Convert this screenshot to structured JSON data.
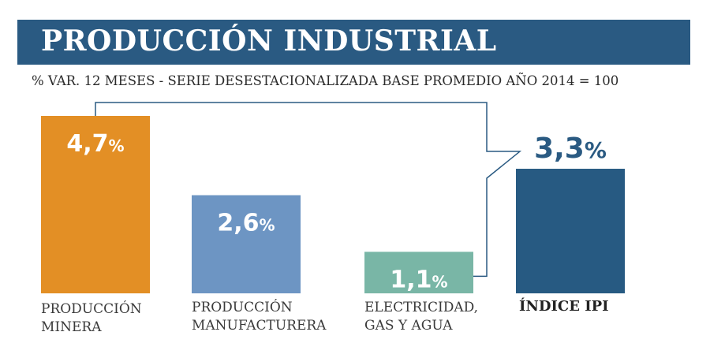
{
  "header": {
    "title": "PRODUCCIÓN INDUSTRIAL",
    "subtitle": "% VAR. 12 MESES - SERIE DESESTACIONALIZADA BASE PROMEDIO AÑO 2014 = 100"
  },
  "chart_data": {
    "type": "bar",
    "title": "PRODUCCIÓN INDUSTRIAL",
    "subtitle": "% VAR. 12 MESES - SERIE DESESTACIONALIZADA BASE PROMEDIO AÑO 2014 = 100",
    "categories": [
      [
        "PRODUCCIÓN",
        "MINERA"
      ],
      [
        "PRODUCCIÓN",
        "MANUFACTURERA"
      ],
      [
        "ELECTRICIDAD,",
        "GAS Y AGUA"
      ],
      [
        "ÍNDICE IPI"
      ]
    ],
    "values": [
      4.7,
      2.6,
      1.1,
      3.3
    ],
    "value_labels": [
      "4,7",
      "2,6",
      "1,1",
      "3,3"
    ],
    "unit": "%",
    "colors": [
      "#e38f25",
      "#6d95c3",
      "#79b6a6",
      "#275a82"
    ],
    "total_index": 3,
    "ylim": [
      0,
      4.7
    ]
  }
}
